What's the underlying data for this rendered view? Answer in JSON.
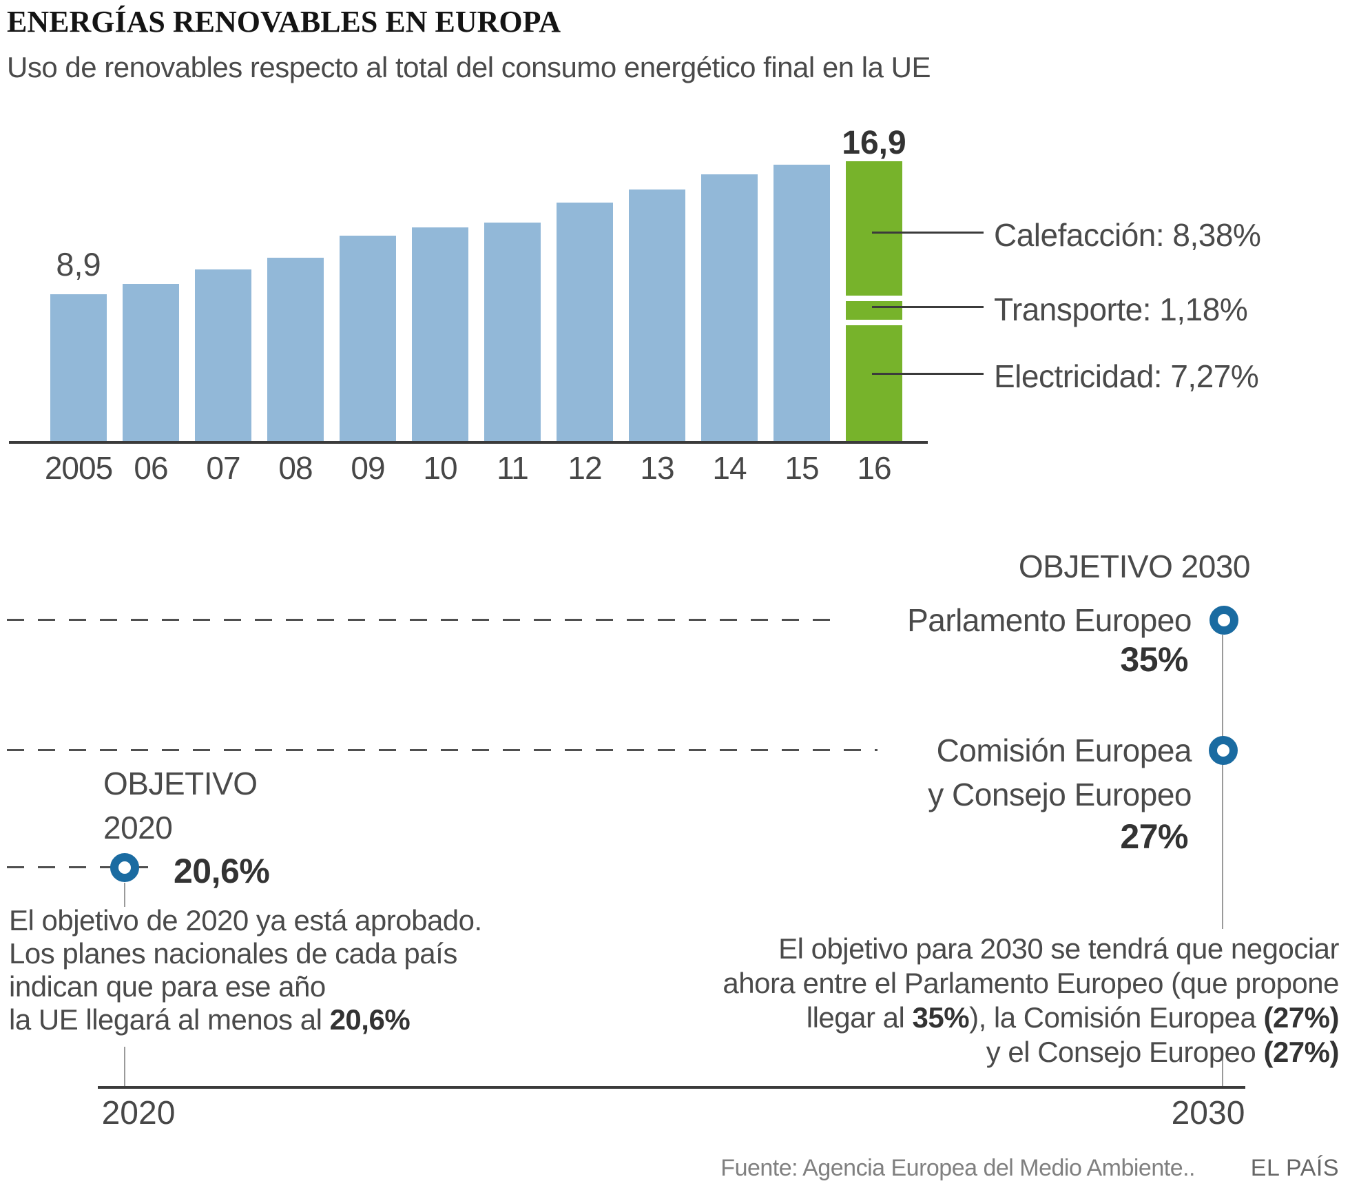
{
  "header": {
    "title": "ENERGÍAS RENOVABLES EN EUROPA",
    "subtitle": "Uso de renovables respecto al total del consumo energético final en la UE"
  },
  "chart_data": {
    "type": "bar",
    "title": "Uso de renovables respecto al total del consumo energético final en la UE",
    "categories": [
      "2005",
      "06",
      "07",
      "08",
      "09",
      "10",
      "11",
      "12",
      "13",
      "14",
      "15",
      "16"
    ],
    "values": [
      8.9,
      9.5,
      10.4,
      11.1,
      12.4,
      12.9,
      13.2,
      14.4,
      15.2,
      16.1,
      16.7,
      16.9
    ],
    "first_bar_label": "8,9",
    "last_bar_label": "16,9",
    "ylim": [
      0,
      16.9
    ],
    "grid": false,
    "bar_color": "#92b8d8",
    "highlight_color": "#77b32b",
    "highlight_segments": [
      {
        "name": "Calefacción",
        "value": 8.38,
        "label": "Calefacción: 8,38%"
      },
      {
        "name": "Transporte",
        "value": 1.18,
        "label": "Transporte: 1,18%"
      },
      {
        "name": "Electricidad",
        "value": 7.27,
        "label": "Electricidad: 7,27%"
      }
    ]
  },
  "objetivo_2030": {
    "heading": "OBJETIVO 2030",
    "parlamento_label": "Parlamento Europeo",
    "parlamento_pct": "35%",
    "comision_label": "Comisión Europea",
    "consejo_label": "y Consejo Europeo",
    "comision_pct": "27%"
  },
  "objetivo_2020": {
    "heading_line1": "OBJETIVO",
    "heading_line2": "2020",
    "pct": "20,6%"
  },
  "left_note": {
    "line1": "El objetivo de 2020 ya está aprobado.",
    "line2": "Los planes nacionales de cada país",
    "line3": "indican que para ese año",
    "line4_text": "la UE llegará al menos al ",
    "line4_bold": "20,6%"
  },
  "right_note": {
    "line1": "El objetivo para 2030 se tendrá que negociar",
    "line2": "ahora entre el Parlamento Europeo (que propone",
    "line3_pre": "llegar al ",
    "line3_bold1": "35%",
    "line3_mid": "), la Comisión Europea ",
    "line3_bold2": "(27%)",
    "line4_text": "y el Consejo Europeo ",
    "line4_bold": "(27%)"
  },
  "timeline": {
    "start_label": "2020",
    "end_label": "2030"
  },
  "footer": {
    "source": "Fuente: Agencia Europea del Medio Ambiente..",
    "credit": "EL PAÍS"
  }
}
